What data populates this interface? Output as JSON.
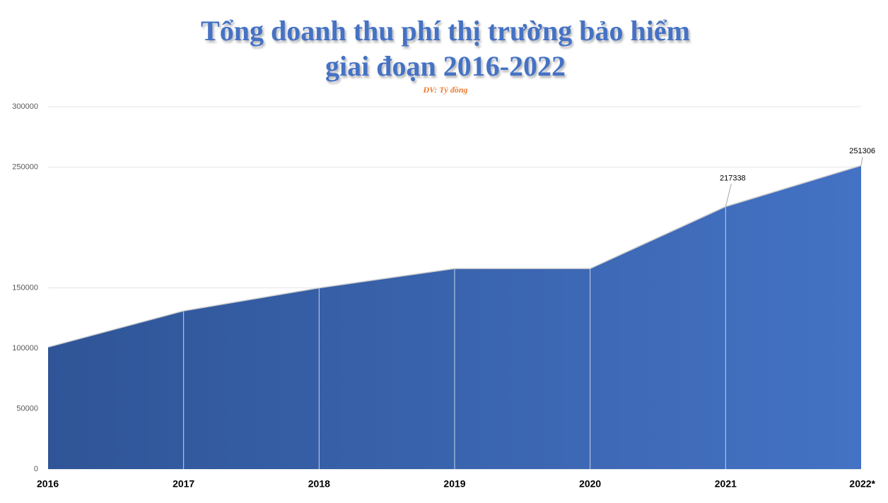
{
  "chart_data": {
    "type": "area",
    "title": [
      "Tổng doanh thu phí thị trường bảo hiểm",
      "giai đoạn 2016-2022"
    ],
    "subtitle": "ĐV: Tỷ đồng",
    "categories": [
      "2016",
      "2017",
      "2018",
      "2019",
      "2020",
      "2021",
      "2022*"
    ],
    "values": [
      101000,
      131000,
      150000,
      166000,
      166000,
      217338,
      251306
    ],
    "data_labels": [
      false,
      false,
      false,
      false,
      false,
      true,
      true
    ],
    "color": "#4472c4",
    "color_start": "#2f5597",
    "ylim": [
      0,
      300000
    ],
    "yticks": [
      0,
      50000,
      100000,
      150000,
      250000,
      300000
    ],
    "grid": true
  }
}
